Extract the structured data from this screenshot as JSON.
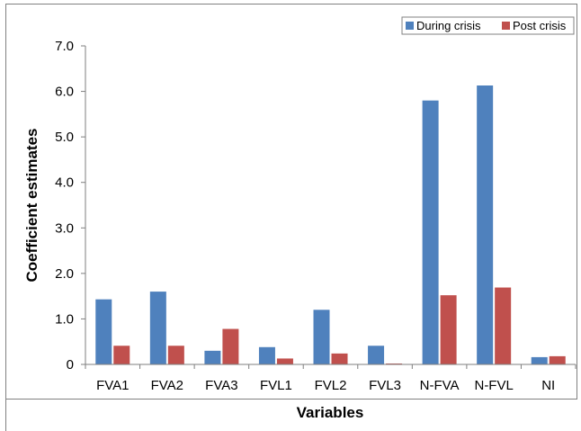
{
  "chart_data": {
    "type": "bar",
    "categories": [
      "FVA1",
      "FVA2",
      "FVA3",
      "FVL1",
      "FVL2",
      "FVL3",
      "N-FVA",
      "N-FVL",
      "NI"
    ],
    "series": [
      {
        "name": "During crisis",
        "color": "#4F81BD",
        "values": [
          1.43,
          1.6,
          0.3,
          0.38,
          1.2,
          0.41,
          5.8,
          6.13,
          0.16
        ]
      },
      {
        "name": "Post crisis",
        "color": "#C0504D",
        "values": [
          0.41,
          0.41,
          0.78,
          0.13,
          0.24,
          0.02,
          1.52,
          1.69,
          0.18
        ]
      }
    ],
    "xlabel": "Variables",
    "ylabel": "Coefficient estimates",
    "ylim": [
      0,
      7
    ],
    "yticks": [
      "0",
      "1.0",
      "2.0",
      "3.0",
      "4.0",
      "5.0",
      "6.0",
      "7.0"
    ],
    "grid": false,
    "legend_position": "top-right"
  }
}
